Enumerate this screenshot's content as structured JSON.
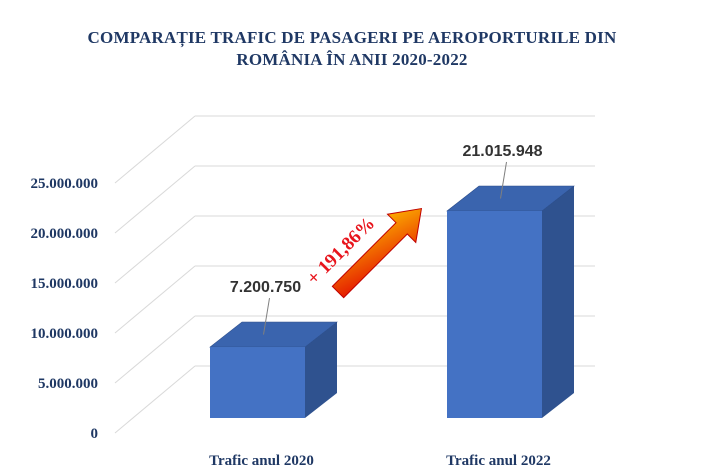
{
  "chart_data": {
    "type": "bar",
    "title_lines": [
      "COMPARAȚIE TRAFIC DE PASAGERI PE AEROPORTURILE DIN",
      "ROMÂNIA ÎN ANII 2020-2022"
    ],
    "categories": [
      "Trafic anul 2020",
      "Trafic anul 2022"
    ],
    "values": [
      7200750,
      21015948
    ],
    "data_labels": [
      "7.200.750",
      "21.015.948"
    ],
    "y_ticks": [
      0,
      5000000,
      10000000,
      15000000,
      20000000,
      25000000
    ],
    "y_tick_labels": [
      "0",
      "5.000.000",
      "10.000.000",
      "15.000.000",
      "20.000.000",
      "25.000.000"
    ],
    "ylim": [
      0,
      25000000
    ],
    "grid": true,
    "legend": "none",
    "annotation": "+ 191,86%",
    "colors": {
      "bar_front": "#4472c4",
      "bar_side": "#2f528f",
      "bar_top": "#3a64ae",
      "title": "#1f3864",
      "arrow_start": "#e00000",
      "arrow_end": "#ffc000"
    }
  }
}
